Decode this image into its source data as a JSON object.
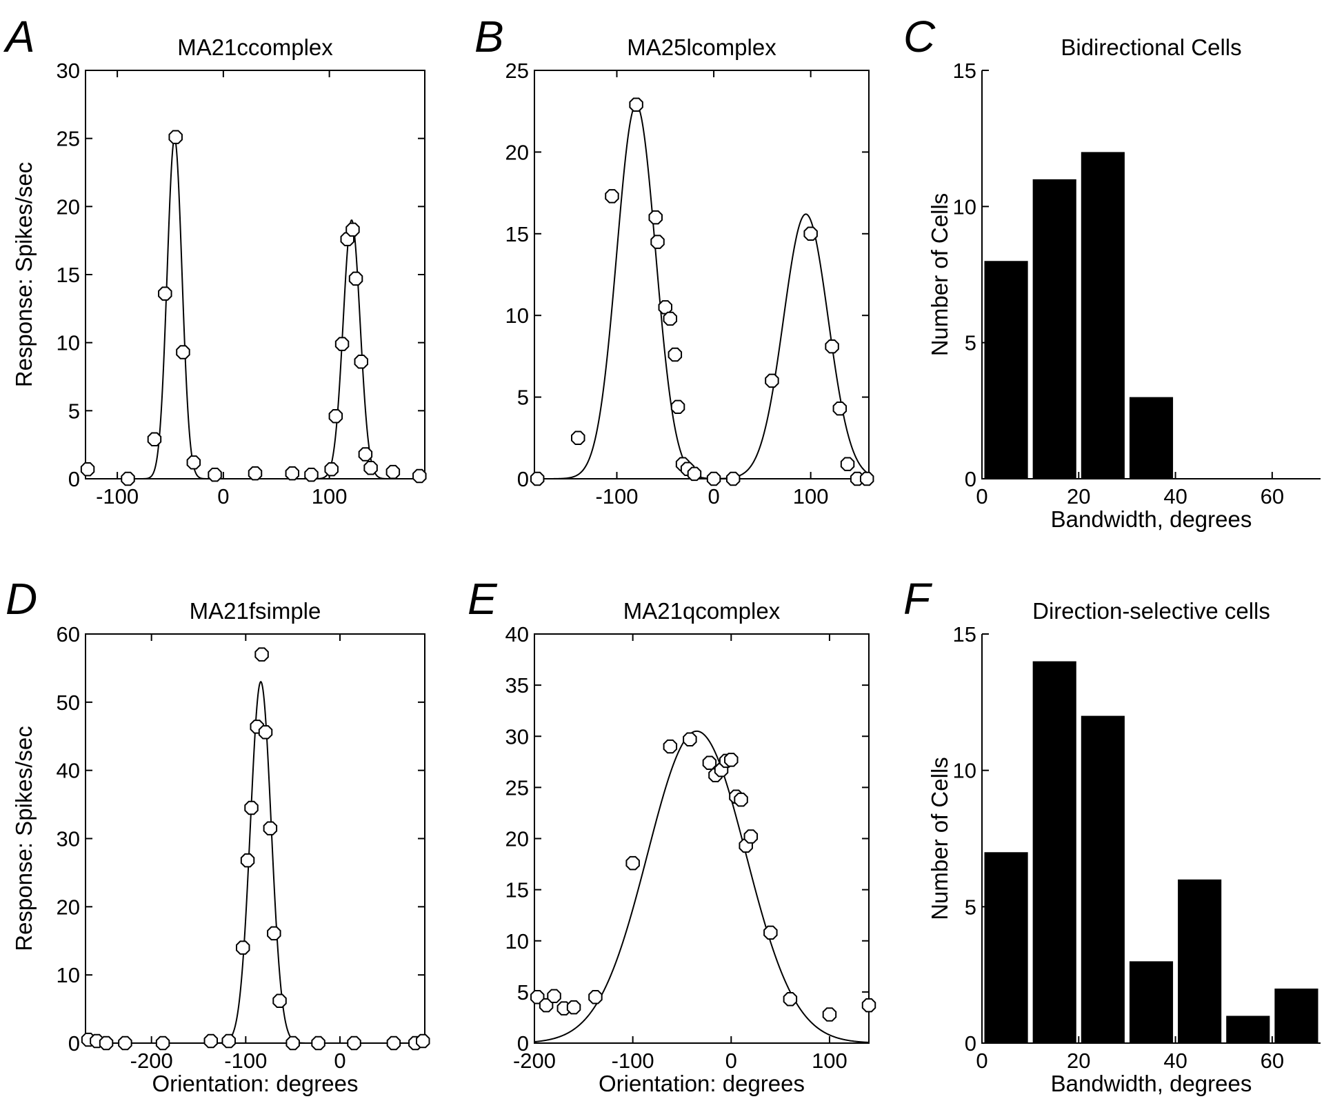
{
  "chart_data": [
    {
      "panel": "A",
      "type": "scatter",
      "title": "MA21ccomplex",
      "xlabel": "",
      "ylabel": "Response: Spikes/sec",
      "xlim": [
        -130,
        190
      ],
      "ylim": [
        0,
        30
      ],
      "xticks": [
        -100,
        0,
        100
      ],
      "yticks": [
        0,
        5,
        10,
        15,
        20,
        25,
        30
      ],
      "points": [
        [
          -128,
          0.7
        ],
        [
          -90,
          0
        ],
        [
          -65,
          2.9
        ],
        [
          -55,
          13.6
        ],
        [
          -45,
          25.1
        ],
        [
          -38,
          9.3
        ],
        [
          -28,
          1.2
        ],
        [
          -8,
          0.3
        ],
        [
          30,
          0.4
        ],
        [
          65,
          0.4
        ],
        [
          83,
          0.3
        ],
        [
          102,
          0.7
        ],
        [
          106,
          4.6
        ],
        [
          112,
          9.9
        ],
        [
          117,
          17.6
        ],
        [
          122,
          18.3
        ],
        [
          125,
          14.7
        ],
        [
          130,
          8.6
        ],
        [
          134,
          1.8
        ],
        [
          139,
          0.8
        ],
        [
          160,
          0.5
        ],
        [
          185,
          0.2
        ]
      ],
      "fit_peaks": [
        {
          "x": -46,
          "amp": 25,
          "sigma": 7
        },
        {
          "x": 121,
          "amp": 19,
          "sigma": 8
        }
      ]
    },
    {
      "panel": "B",
      "type": "scatter",
      "title": "MA25lcomplex",
      "xlabel": "",
      "ylabel": "",
      "xlim": [
        -185,
        160
      ],
      "ylim": [
        0,
        25
      ],
      "xticks": [
        -100,
        0,
        100
      ],
      "yticks": [
        0,
        5,
        10,
        15,
        20,
        25
      ],
      "points": [
        [
          -182,
          0
        ],
        [
          -140,
          2.5
        ],
        [
          -105,
          17.3
        ],
        [
          -80,
          22.9
        ],
        [
          -60,
          16
        ],
        [
          -58,
          14.5
        ],
        [
          -50,
          10.5
        ],
        [
          -45,
          9.8
        ],
        [
          -40,
          7.6
        ],
        [
          -37,
          4.4
        ],
        [
          -32,
          0.9
        ],
        [
          -27,
          0.6
        ],
        [
          -20,
          0.3
        ],
        [
          0,
          0
        ],
        [
          20,
          0
        ],
        [
          60,
          6
        ],
        [
          100,
          15
        ],
        [
          122,
          8.1
        ],
        [
          130,
          4.3
        ],
        [
          138,
          0.9
        ],
        [
          148,
          0
        ],
        [
          158,
          0
        ]
      ],
      "fit_peaks": [
        {
          "x": -80,
          "amp": 22.9,
          "sigma": 20
        },
        {
          "x": 95,
          "amp": 16.2,
          "sigma": 23
        }
      ]
    },
    {
      "panel": "C",
      "type": "bar",
      "title": "Bidirectional Cells",
      "xlabel": "Bandwidth, degrees",
      "ylabel": "Number of Cells",
      "xlim": [
        0,
        70
      ],
      "ylim": [
        0,
        15
      ],
      "xticks": [
        0,
        20,
        40,
        60
      ],
      "yticks": [
        0,
        5,
        10,
        15
      ],
      "bar_width": 9,
      "categories": [
        5,
        15,
        25,
        35
      ],
      "values": [
        8,
        11,
        12,
        3
      ]
    },
    {
      "panel": "D",
      "type": "scatter",
      "title": "MA21fsimple",
      "xlabel": "Orientation: degrees",
      "ylabel": "Response: Spikes/sec",
      "xlim": [
        -270,
        90
      ],
      "ylim": [
        0,
        60
      ],
      "xticks": [
        -200,
        -100,
        0
      ],
      "yticks": [
        0,
        10,
        20,
        30,
        40,
        50,
        60
      ],
      "points": [
        [
          -267,
          0.5
        ],
        [
          -258,
          0.3
        ],
        [
          -248,
          0
        ],
        [
          -228,
          0
        ],
        [
          -188,
          0
        ],
        [
          -137,
          0.3
        ],
        [
          -118,
          0.3
        ],
        [
          -103,
          14
        ],
        [
          -98,
          26.8
        ],
        [
          -94,
          34.5
        ],
        [
          -88,
          46.4
        ],
        [
          -83,
          57
        ],
        [
          -79,
          45.6
        ],
        [
          -74,
          31.5
        ],
        [
          -70,
          16.1
        ],
        [
          -64,
          6.2
        ],
        [
          -50,
          0
        ],
        [
          -23,
          0
        ],
        [
          15,
          0
        ],
        [
          57,
          0
        ],
        [
          80,
          0
        ],
        [
          88,
          0.3
        ]
      ],
      "fit_peaks": [
        {
          "x": -84,
          "amp": 53,
          "sigma": 11
        }
      ]
    },
    {
      "panel": "E",
      "type": "scatter",
      "title": "MA21qcomplex",
      "xlabel": "Orientation: degrees",
      "ylabel": "",
      "xlim": [
        -200,
        140
      ],
      "ylim": [
        0,
        40
      ],
      "xticks": [
        -200,
        -100,
        0,
        100
      ],
      "yticks": [
        0,
        5,
        10,
        15,
        20,
        25,
        30,
        35,
        40
      ],
      "points": [
        [
          -197,
          4.5
        ],
        [
          -188,
          3.7
        ],
        [
          -180,
          4.6
        ],
        [
          -170,
          3.4
        ],
        [
          -160,
          3.5
        ],
        [
          -138,
          4.5
        ],
        [
          -100,
          17.6
        ],
        [
          -62,
          29
        ],
        [
          -42,
          29.7
        ],
        [
          -22,
          27.4
        ],
        [
          -16,
          26.2
        ],
        [
          -10,
          26.7
        ],
        [
          -5,
          27.6
        ],
        [
          0,
          27.7
        ],
        [
          5,
          24.1
        ],
        [
          10,
          23.8
        ],
        [
          15,
          19.3
        ],
        [
          20,
          20.2
        ],
        [
          40,
          10.8
        ],
        [
          60,
          4.3
        ],
        [
          100,
          2.8
        ],
        [
          140,
          3.7
        ]
      ],
      "fit_peaks": [
        {
          "x": -35,
          "amp": 30.5,
          "sigma": 50
        }
      ]
    },
    {
      "panel": "F",
      "type": "bar",
      "title": "Direction-selective cells",
      "xlabel": "Bandwidth, degrees",
      "ylabel": "Number of Cells",
      "xlim": [
        0,
        70
      ],
      "ylim": [
        0,
        15
      ],
      "xticks": [
        0,
        20,
        40,
        60
      ],
      "yticks": [
        0,
        5,
        10,
        15
      ],
      "bar_width": 9,
      "categories": [
        5,
        15,
        25,
        35,
        45,
        55,
        65
      ],
      "values": [
        7,
        14,
        12,
        3,
        6,
        1,
        2
      ]
    }
  ]
}
